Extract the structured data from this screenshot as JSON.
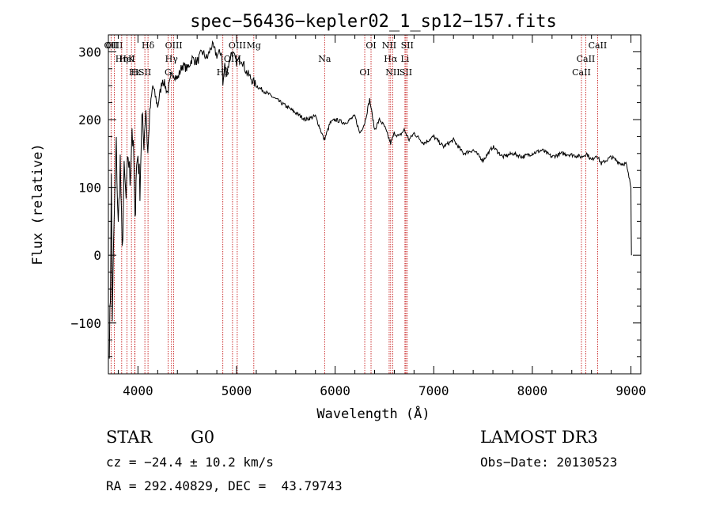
{
  "chart_data": {
    "type": "line",
    "title": "spec−56436−kepler02_1_sp12−157.fits",
    "xlabel": "Wavelength (Å)",
    "ylabel": "Flux (relative)",
    "xlim": [
      3700,
      9100
    ],
    "ylim": [
      -175,
      325
    ],
    "xticks": [
      4000,
      5000,
      6000,
      7000,
      8000,
      9000
    ],
    "yticks": [
      -100,
      0,
      100,
      200,
      300
    ],
    "ytick_labels": [
      "−100",
      "0",
      "100",
      "200",
      "300"
    ],
    "series": [
      {
        "name": "spectrum",
        "x": [
          3710,
          3720,
          3730,
          3740,
          3760,
          3780,
          3800,
          3820,
          3840,
          3860,
          3880,
          3900,
          3920,
          3940,
          3960,
          3970,
          3980,
          4000,
          4020,
          4040,
          4060,
          4080,
          4100,
          4120,
          4150,
          4200,
          4250,
          4300,
          4350,
          4400,
          4450,
          4500,
          4550,
          4600,
          4650,
          4700,
          4750,
          4800,
          4850,
          4861,
          4880,
          4900,
          4950,
          5000,
          5050,
          5100,
          5150,
          5200,
          5300,
          5400,
          5500,
          5600,
          5700,
          5800,
          5890,
          5950,
          6000,
          6100,
          6200,
          6250,
          6300,
          6350,
          6400,
          6450,
          6500,
          6563,
          6600,
          6650,
          6700,
          6750,
          6800,
          6900,
          7000,
          7100,
          7200,
          7300,
          7400,
          7500,
          7600,
          7700,
          7800,
          7900,
          8000,
          8100,
          8200,
          8300,
          8400,
          8500,
          8550,
          8600,
          8650,
          8700,
          8800,
          8900,
          8950,
          8980,
          9000,
          9005
        ],
        "y": [
          -130,
          -60,
          110,
          -90,
          60,
          160,
          40,
          140,
          0,
          120,
          80,
          150,
          110,
          190,
          130,
          40,
          120,
          150,
          100,
          200,
          170,
          220,
          150,
          210,
          250,
          220,
          260,
          240,
          270,
          260,
          280,
          275,
          290,
          285,
          300,
          290,
          310,
          295,
          300,
          250,
          280,
          270,
          300,
          285,
          290,
          270,
          260,
          250,
          240,
          230,
          220,
          210,
          200,
          205,
          170,
          195,
          200,
          195,
          205,
          180,
          195,
          230,
          185,
          200,
          190,
          165,
          180,
          175,
          185,
          170,
          180,
          165,
          175,
          160,
          170,
          150,
          155,
          140,
          160,
          145,
          150,
          145,
          150,
          155,
          145,
          150,
          148,
          145,
          150,
          140,
          148,
          135,
          145,
          135,
          135,
          115,
          100,
          0
        ]
      }
    ],
    "lines": [
      {
        "name": "Hδ",
        "wl": 4102
      },
      {
        "name": "K",
        "wl": 3934
      },
      {
        "name": "Hε",
        "wl": 3970
      },
      {
        "name": "OII",
        "wl": 3727
      },
      {
        "name": "HeI",
        "wl": 3889
      },
      {
        "name": "SII",
        "wl": 4070
      },
      {
        "name": "OIII",
        "wl": 3760
      },
      {
        "name": "Hη",
        "wl": 3835
      },
      {
        "name": "H",
        "wl": 3968
      },
      {
        "name": "OIII",
        "wl": 4363
      },
      {
        "name": "Hγ",
        "wl": 4340
      },
      {
        "name": "G",
        "wl": 4305
      },
      {
        "name": "OIII",
        "wl": 5007
      },
      {
        "name": "OIII",
        "wl": 4959
      },
      {
        "name": "Hβ",
        "wl": 4861
      },
      {
        "name": "Mg",
        "wl": 5175
      },
      {
        "name": "Na",
        "wl": 5893
      },
      {
        "name": "OI",
        "wl": 6300
      },
      {
        "name": "OI",
        "wl": 6364
      },
      {
        "name": "Hα",
        "wl": 6563
      },
      {
        "name": "SII",
        "wl": 6717
      },
      {
        "name": "NII",
        "wl": 6548
      },
      {
        "name": "Li",
        "wl": 6708
      },
      {
        "name": "NII",
        "wl": 6584
      },
      {
        "name": "SII",
        "wl": 6731
      },
      {
        "name": "CaII",
        "wl": 8542
      },
      {
        "name": "CaII",
        "wl": 8498
      },
      {
        "name": "CaII",
        "wl": 8662
      }
    ]
  },
  "info": {
    "object_type": "STAR",
    "subclass": "G0",
    "survey": "LAMOST DR3",
    "cz": "cz = −24.4 ± 10.2 km/s",
    "obs_date": "Obs−Date: 20130523",
    "coords": "RA = 292.40829, DEC =  43.79743"
  },
  "colors": {
    "axis": "#000000",
    "spectrum": "#000000",
    "lines": "#c00000"
  }
}
